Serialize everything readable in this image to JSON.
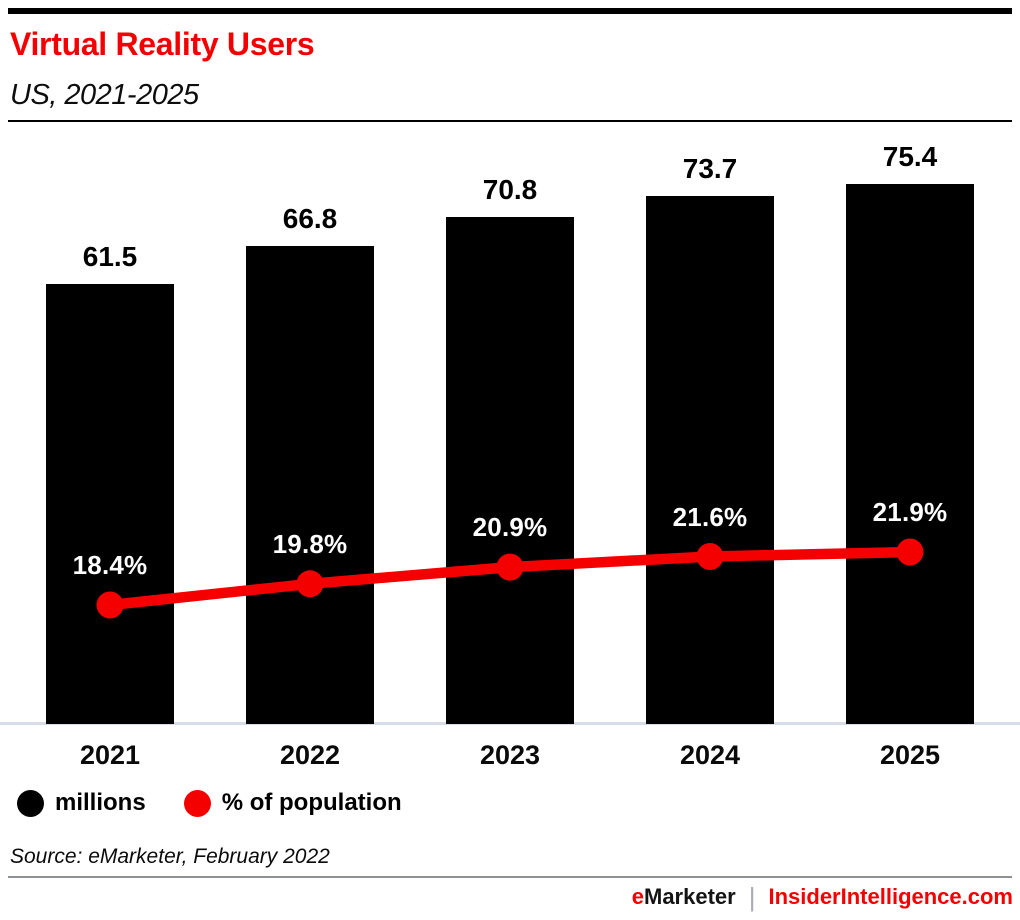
{
  "header": {
    "title": "Virtual Reality Users",
    "subtitle": "US, 2021-2025"
  },
  "chart_data": {
    "type": "bar",
    "subtype": "bar-with-line-overlay",
    "title": "Virtual Reality Users",
    "subtitle": "US, 2021-2025",
    "categories": [
      "2021",
      "2022",
      "2023",
      "2024",
      "2025"
    ],
    "series": [
      {
        "name": "millions",
        "type": "bar",
        "color": "#000000",
        "values": [
          61.5,
          66.8,
          70.8,
          73.7,
          75.4
        ]
      },
      {
        "name": "% of population",
        "type": "line",
        "color": "#f50000",
        "values": [
          18.4,
          19.8,
          20.9,
          21.6,
          21.9
        ]
      }
    ],
    "bar_value_labels": [
      "61.5",
      "66.8",
      "70.8",
      "73.7",
      "75.4"
    ],
    "line_value_labels": [
      "18.4%",
      "19.8%",
      "20.9%",
      "21.6%",
      "21.9%"
    ],
    "xlabel": "",
    "ylabel": "",
    "grid": false,
    "y_axis_shown": false,
    "legend_position": "bottom-left"
  },
  "legend": {
    "items": [
      {
        "label": "millions",
        "color": "#000000"
      },
      {
        "label": "% of population",
        "color": "#f50000"
      }
    ]
  },
  "source_line": "Source: eMarketer, February 2022",
  "footer": {
    "brand_accent": "e",
    "brand_rest": "Marketer",
    "separator": "|",
    "site": "InsiderIntelligence.com"
  },
  "colors": {
    "accent_red": "#f50000",
    "bar_black": "#000000",
    "axis_line": "#d7dde8",
    "divider_gray": "#8d9095"
  }
}
